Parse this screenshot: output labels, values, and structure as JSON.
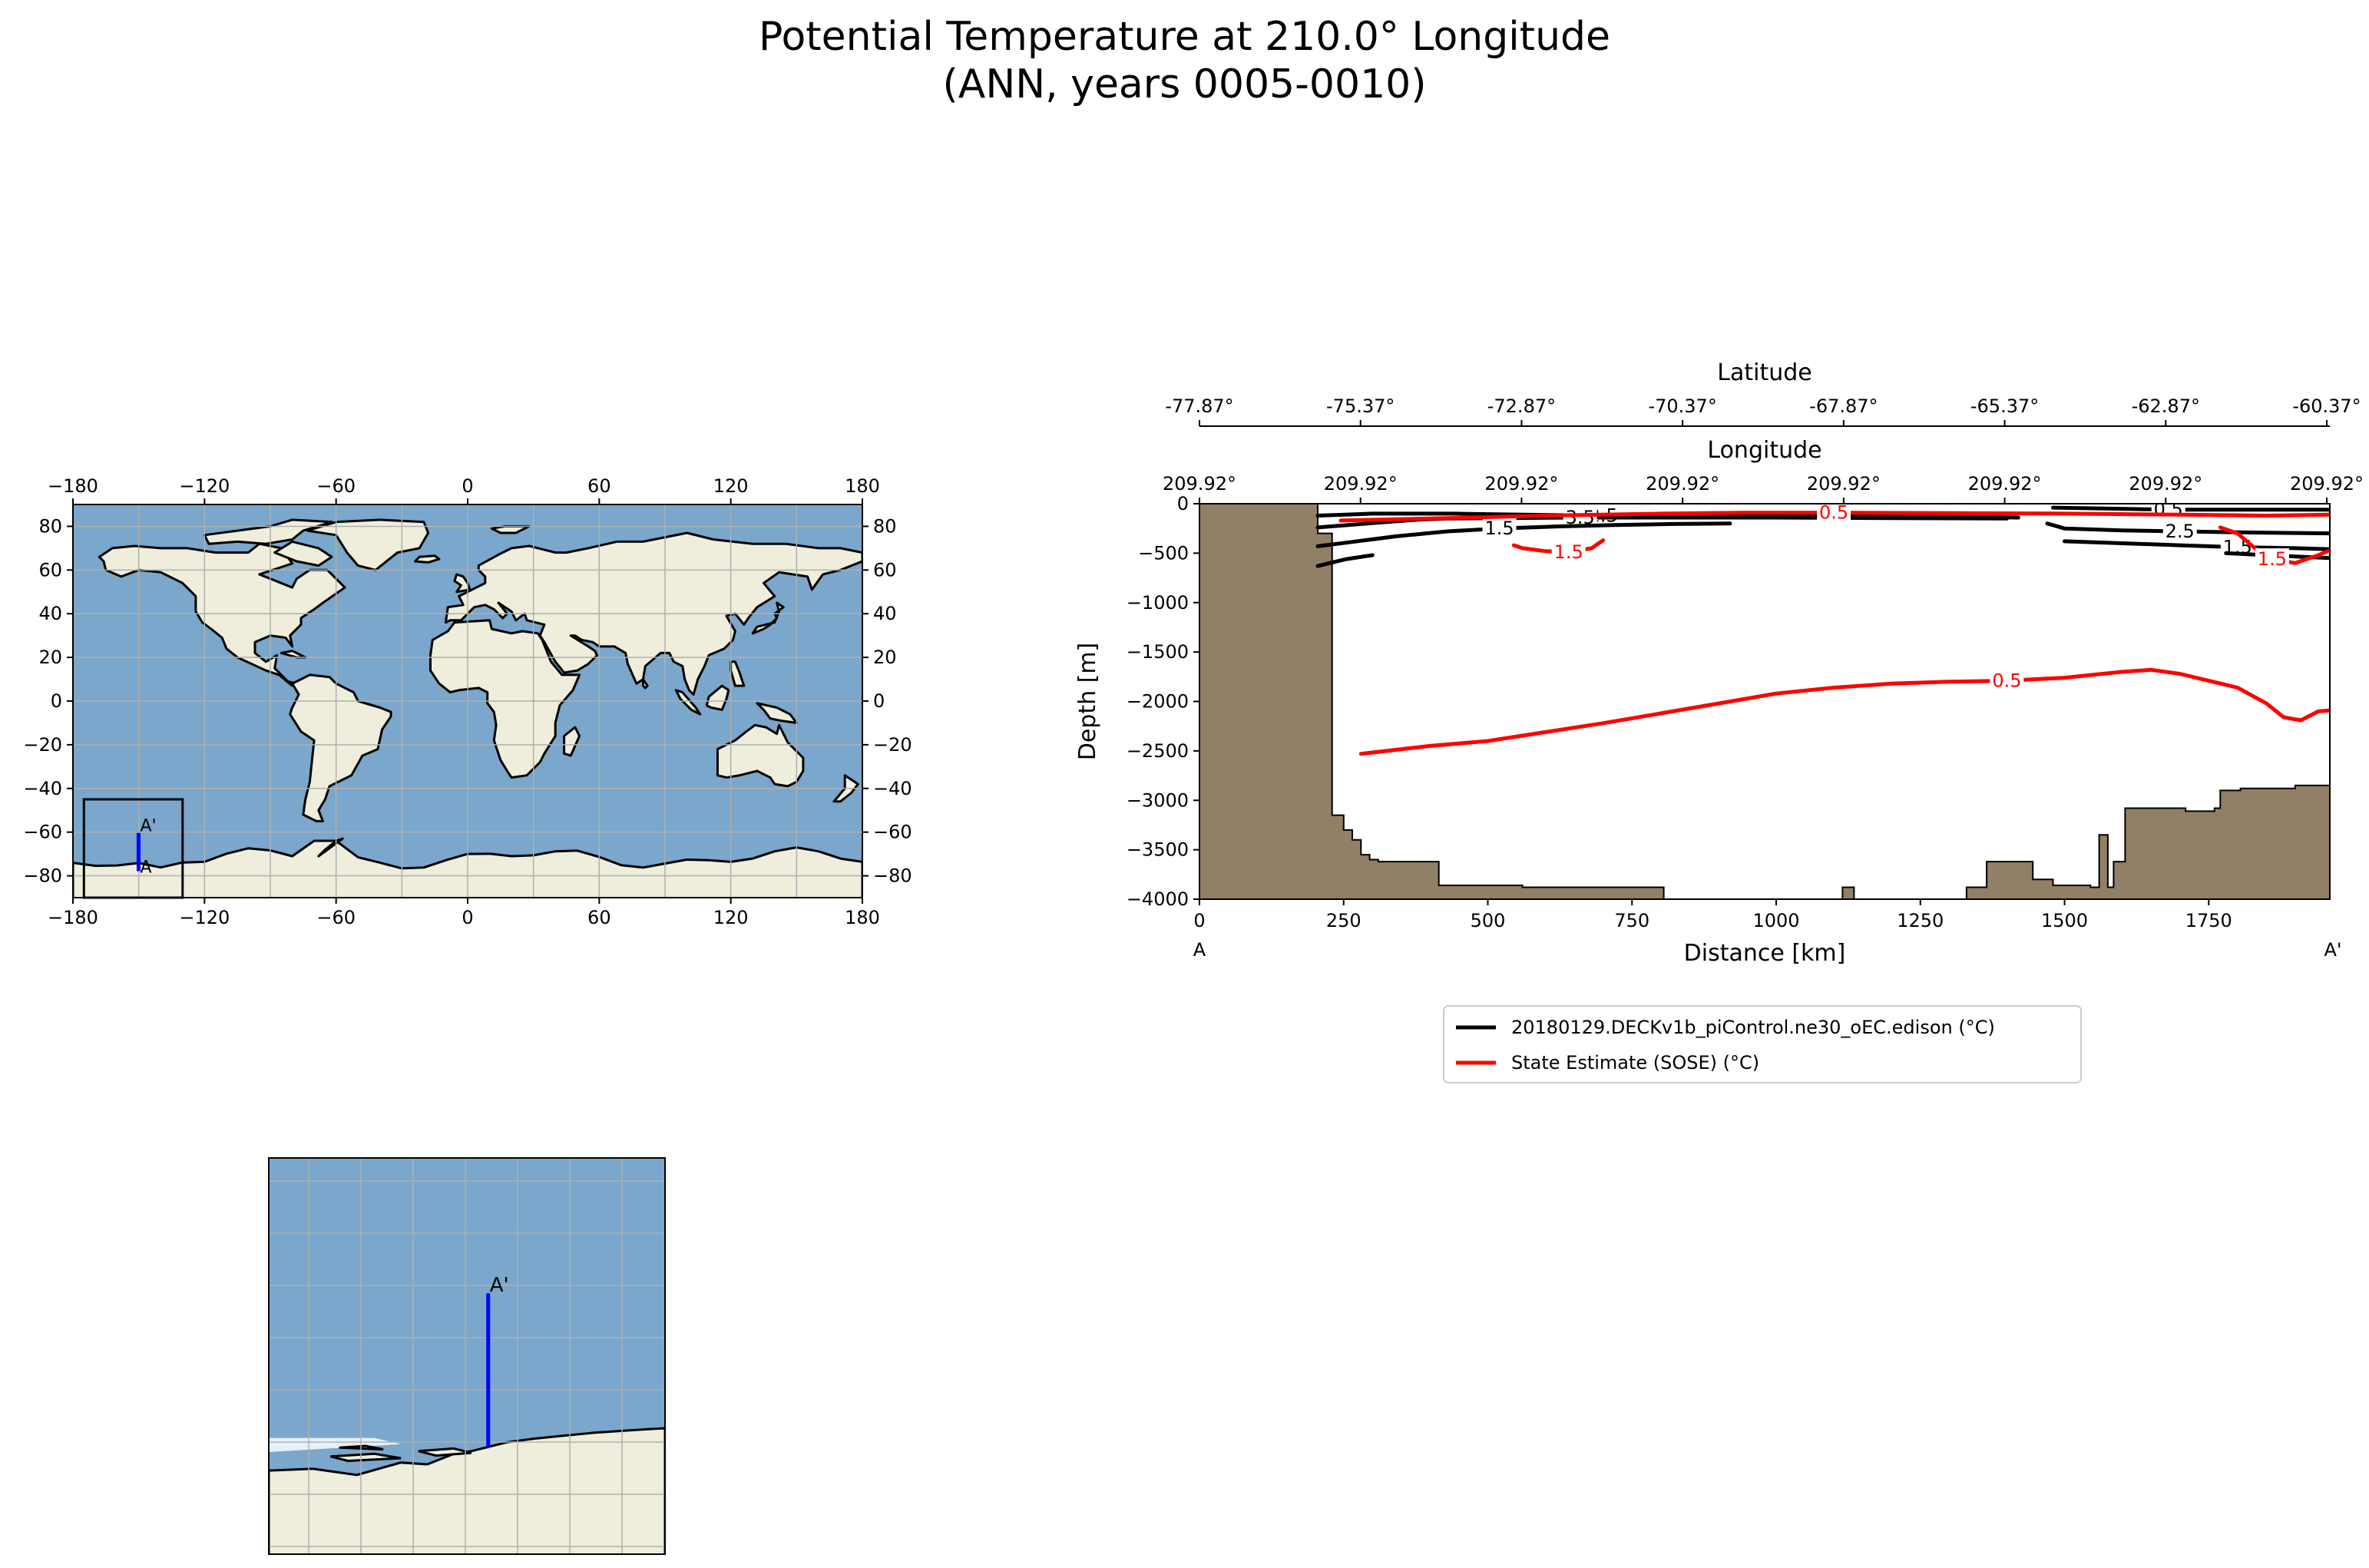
{
  "title": {
    "line1": "Potential Temperature at 210.0° Longitude",
    "line2": "(ANN, years 0005-0010)"
  },
  "colors": {
    "ocean": "#7aa7cb",
    "land": "#efeedc",
    "ice_shelf": "#e6f0fa",
    "bathymetry": "#917f66",
    "grid": "#b0b0b0",
    "transect": "#0000ff",
    "model_contour": "#000000",
    "obs_contour": "#ff0000"
  },
  "chart_data": [
    {
      "type": "map",
      "name": "global-map",
      "xticks": [
        -180,
        -120,
        -60,
        0,
        60,
        120,
        180
      ],
      "yticks": [
        80,
        60,
        40,
        20,
        0,
        -20,
        -40,
        -60,
        -80
      ],
      "xlim": [
        -180,
        180
      ],
      "ylim": [
        -90,
        90
      ],
      "grid": true,
      "inset_box": {
        "lon": [
          -175,
          -130
        ],
        "lat": [
          -90,
          -45
        ]
      },
      "transect": {
        "lon": -150.08,
        "lat": [
          -77.87,
          -60.37
        ]
      },
      "labels": {
        "start": "A",
        "end": "A'"
      }
    },
    {
      "type": "map",
      "name": "inset-map",
      "xlim": [
        -175,
        -130
      ],
      "ylim": [
        -90,
        -45
      ],
      "grid": true,
      "transect": {
        "lon": -150.08,
        "lat": [
          -77.87,
          -60.37
        ]
      },
      "labels": {
        "end": "A'"
      }
    },
    {
      "type": "line",
      "name": "transect-section",
      "xlabel": "Distance [km]",
      "ylabel": "Depth [m]",
      "xlim": [
        0,
        1960
      ],
      "ylim": [
        -4000,
        0
      ],
      "xticks": [
        0,
        250,
        500,
        750,
        1000,
        1250,
        1500,
        1750
      ],
      "yticks": [
        0,
        -500,
        -1000,
        -1500,
        -2000,
        -2500,
        -3000,
        -3500,
        -4000
      ],
      "endpoint_labels": {
        "start": "A",
        "end": "A'"
      },
      "top_axis_latitude": {
        "label": "Latitude",
        "ticks": [
          "-77.87°",
          "-75.37°",
          "-72.87°",
          "-70.37°",
          "-67.87°",
          "-65.37°",
          "-62.87°",
          "-60.37°"
        ]
      },
      "top_axis_longitude": {
        "label": "Longitude",
        "ticks": [
          "209.92°",
          "209.92°",
          "209.92°",
          "209.92°",
          "209.92°",
          "209.92°",
          "209.92°",
          "209.92°"
        ]
      },
      "bathymetry": {
        "x": [
          0,
          205,
          205,
          230,
          230,
          250,
          250,
          265,
          265,
          280,
          280,
          295,
          295,
          310,
          310,
          415,
          415,
          560,
          560,
          805,
          805,
          1115,
          1115,
          1135,
          1135,
          1330,
          1330,
          1365,
          1365,
          1445,
          1445,
          1480,
          1480,
          1545,
          1545,
          1560,
          1560,
          1575,
          1575,
          1585,
          1585,
          1605,
          1605,
          1710,
          1710,
          1760,
          1760,
          1770,
          1770,
          1805,
          1805,
          1900,
          1900,
          1960
        ],
        "y": [
          0,
          0,
          -300,
          -300,
          -3150,
          -3150,
          -3300,
          -3300,
          -3400,
          -3400,
          -3550,
          -3550,
          -3600,
          -3600,
          -3620,
          -3620,
          -3860,
          -3860,
          -3880,
          -3880,
          -4000,
          -4000,
          -3880,
          -3880,
          -4000,
          -4000,
          -3880,
          -3880,
          -3620,
          -3620,
          -3800,
          -3800,
          -3860,
          -3860,
          -3880,
          -3880,
          -3350,
          -3350,
          -3880,
          -3880,
          -3620,
          -3620,
          -3080,
          -3080,
          -3110,
          -3110,
          -3080,
          -3080,
          -2900,
          -2900,
          -2880,
          -2880,
          -2850,
          -2850
        ]
      },
      "series": [
        {
          "name": "20180129.DECKv1b_piControl.ne30_oEC.edison (°C)",
          "contours": [
            {
              "label": "2.5",
              "x": [
                205,
                300,
                440,
                560,
                700,
                900,
                1100,
                1300,
                1420
              ],
              "y": [
                -120,
                -100,
                -100,
                -110,
                -120,
                -120,
                -125,
                -130,
                -140
              ]
            },
            {
              "label": "3.5",
              "x": [
                205,
                290,
                380,
                430,
                520,
                660,
                800,
                1000,
                1200,
                1400
              ],
              "y": [
                -240,
                -200,
                -160,
                -150,
                -145,
                -140,
                -140,
                -140,
                -145,
                -150
              ]
            },
            {
              "label": "1.5",
              "x": [
                205,
                260,
                340,
                430,
                520,
                620,
                720,
                820,
                920
              ],
              "y": [
                -430,
                -390,
                -330,
                -280,
                -250,
                -230,
                -215,
                -205,
                -200
              ]
            },
            {
              "label": "",
              "x": [
                205,
                255,
                300
              ],
              "y": [
                -630,
                -560,
                -520
              ]
            },
            {
              "label": "0.5",
              "x": [
                1480,
                1580,
                1680,
                1800,
                1960
              ],
              "y": [
                -40,
                -50,
                -60,
                -60,
                -60
              ]
            },
            {
              "label": "2.5",
              "x": [
                1470,
                1500,
                1600,
                1700,
                1800,
                1960
              ],
              "y": [
                -200,
                -250,
                -270,
                -280,
                -290,
                -300
              ]
            },
            {
              "label": "1.5",
              "x": [
                1500,
                1600,
                1700,
                1800,
                1900,
                1960
              ],
              "y": [
                -380,
                -400,
                -420,
                -440,
                -450,
                -460
              ]
            },
            {
              "label": "",
              "x": [
                1780,
                1850,
                1960
              ],
              "y": [
                -500,
                -520,
                -550
              ]
            }
          ]
        },
        {
          "name": "State Estimate (SOSE) (°C)",
          "contours": [
            {
              "label": "0.5",
              "x": [
                245,
                400,
                600,
                800,
                950,
                1100,
                1300,
                1500,
                1700,
                1850,
                1960
              ],
              "y": [
                -170,
                -150,
                -120,
                -100,
                -90,
                -90,
                -95,
                -100,
                -110,
                -120,
                -110
              ]
            },
            {
              "label": "1.5",
              "x": [
                545,
                560,
                600,
                640,
                680,
                700
              ],
              "y": [
                -420,
                -450,
                -480,
                -490,
                -450,
                -370
              ]
            },
            {
              "label": "1.5",
              "x": [
                1770,
                1800,
                1830,
                1860,
                1900,
                1940,
                1960
              ],
              "y": [
                -240,
                -300,
                -450,
                -560,
                -600,
                -520,
                -470
              ]
            },
            {
              "label": "0.5",
              "x": [
                280,
                400,
                500,
                600,
                700,
                800,
                900,
                1000,
                1100,
                1200,
                1300,
                1400,
                1500,
                1600,
                1650,
                1700,
                1800,
                1850,
                1880,
                1910,
                1940,
                1960
              ],
              "y": [
                -2530,
                -2450,
                -2400,
                -2310,
                -2220,
                -2120,
                -2020,
                -1920,
                -1860,
                -1820,
                -1800,
                -1790,
                -1760,
                -1700,
                -1680,
                -1720,
                -1860,
                -2020,
                -2160,
                -2190,
                -2100,
                -2090
              ]
            }
          ]
        }
      ],
      "legend": "below"
    }
  ]
}
